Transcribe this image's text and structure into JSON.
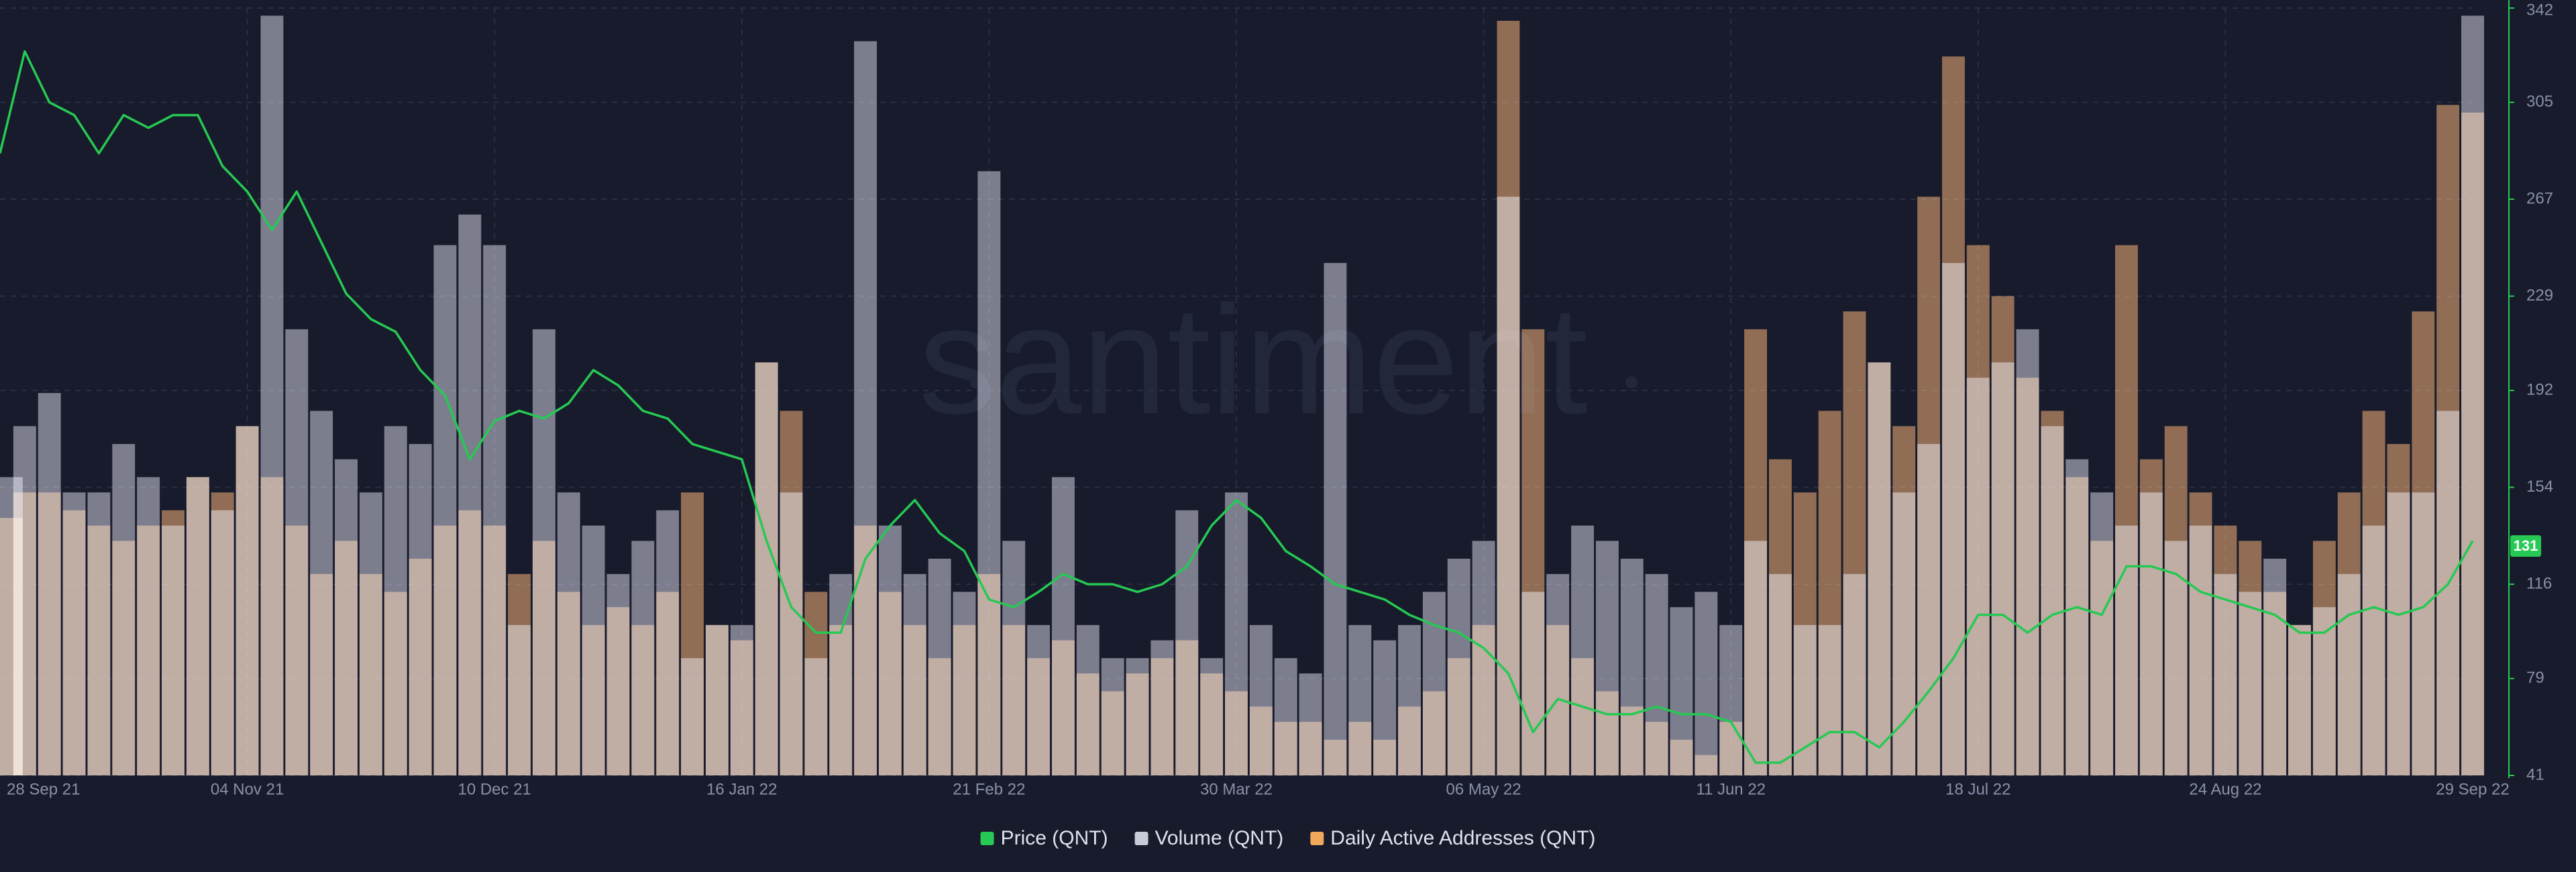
{
  "chart_data": {
    "type": "combo",
    "watermark": "santiment",
    "categories": [
      "28 Sep 21",
      null,
      null,
      null,
      null,
      null,
      null,
      null,
      null,
      null,
      "04 Nov 21",
      null,
      null,
      null,
      null,
      null,
      null,
      null,
      null,
      null,
      "10 Dec 21",
      null,
      null,
      null,
      null,
      null,
      null,
      null,
      null,
      null,
      "16 Jan 22",
      null,
      null,
      null,
      null,
      null,
      null,
      null,
      null,
      null,
      "21 Feb 22",
      null,
      null,
      null,
      null,
      null,
      null,
      null,
      null,
      null,
      "30 Mar 22",
      null,
      null,
      null,
      null,
      null,
      null,
      null,
      null,
      null,
      "06 May 22",
      null,
      null,
      null,
      null,
      null,
      null,
      null,
      null,
      null,
      "11 Jun 22",
      null,
      null,
      null,
      null,
      null,
      null,
      null,
      null,
      null,
      "18 Jul 22",
      null,
      null,
      null,
      null,
      null,
      null,
      null,
      null,
      null,
      "24 Aug 22",
      null,
      null,
      null,
      null,
      null,
      null,
      null,
      null,
      null,
      "29 Sep 22"
    ],
    "series": [
      {
        "name": "Price (QNT)",
        "type": "line",
        "color": "#26c953",
        "values": [
          285,
          325,
          305,
          300,
          285,
          300,
          295,
          300,
          300,
          280,
          270,
          255,
          270,
          250,
          230,
          220,
          215,
          200,
          190,
          165,
          180,
          184,
          181,
          187,
          200,
          194,
          184,
          181,
          171,
          168,
          165,
          133,
          107,
          97,
          97,
          126,
          139,
          149,
          136,
          129,
          110,
          107,
          113,
          120,
          116,
          116,
          113,
          116,
          123,
          139,
          149,
          142,
          129,
          123,
          116,
          113,
          110,
          104,
          100,
          97,
          91,
          81,
          58,
          71,
          68,
          65,
          65,
          68,
          65,
          65,
          62,
          46,
          46,
          52,
          58,
          58,
          52,
          62,
          74,
          87,
          104,
          104,
          97,
          104,
          107,
          104,
          123,
          123,
          120,
          113,
          110,
          107,
          104,
          97,
          97,
          104,
          107,
          104,
          107,
          116,
          133
        ]
      },
      {
        "name": "Volume (QNT)",
        "type": "bar",
        "color": "#c9cbd9",
        "values": [
          158,
          178,
          191,
          152,
          152,
          171,
          158,
          139,
          158,
          145,
          178,
          339,
          216,
          184,
          165,
          152,
          178,
          171,
          249,
          261,
          249,
          100,
          216,
          152,
          139,
          120,
          133,
          145,
          87,
          100,
          100,
          203,
          152,
          87,
          120,
          329,
          139,
          120,
          126,
          113,
          278,
          133,
          100,
          158,
          100,
          87,
          87,
          94,
          145,
          87,
          152,
          100,
          87,
          81,
          242,
          100,
          94,
          100,
          113,
          126,
          133,
          268,
          113,
          120,
          139,
          133,
          126,
          120,
          107,
          113,
          100,
          133,
          120,
          100,
          100,
          120,
          203,
          152,
          171,
          242,
          197,
          203,
          216,
          178,
          165,
          152,
          139,
          152,
          133,
          139,
          120,
          113,
          126,
          100,
          107,
          120,
          139,
          152,
          152,
          184,
          339
        ]
      },
      {
        "name": "Daily Active Addresses (QNT)",
        "type": "bar",
        "color": "#f0a85a",
        "values": [
          142,
          152,
          152,
          145,
          139,
          133,
          139,
          145,
          158,
          152,
          178,
          158,
          139,
          120,
          133,
          120,
          113,
          126,
          139,
          145,
          139,
          120,
          133,
          113,
          100,
          107,
          100,
          113,
          152,
          100,
          94,
          203,
          184,
          113,
          100,
          139,
          113,
          100,
          87,
          100,
          120,
          100,
          87,
          94,
          81,
          74,
          81,
          87,
          94,
          81,
          74,
          68,
          62,
          62,
          55,
          62,
          55,
          68,
          74,
          87,
          100,
          337,
          216,
          100,
          87,
          74,
          68,
          62,
          55,
          49,
          62,
          216,
          165,
          152,
          184,
          223,
          203,
          178,
          268,
          323,
          249,
          229,
          197,
          184,
          158,
          133,
          249,
          165,
          178,
          152,
          139,
          133,
          113,
          100,
          133,
          152,
          184,
          171,
          223,
          304,
          301
        ]
      }
    ],
    "ylim": [
      41,
      342
    ],
    "yticks": [
      41,
      79,
      116,
      154,
      192,
      229,
      267,
      305,
      342
    ],
    "current_value": 131,
    "axis_color": "#26c953",
    "grid": true
  }
}
